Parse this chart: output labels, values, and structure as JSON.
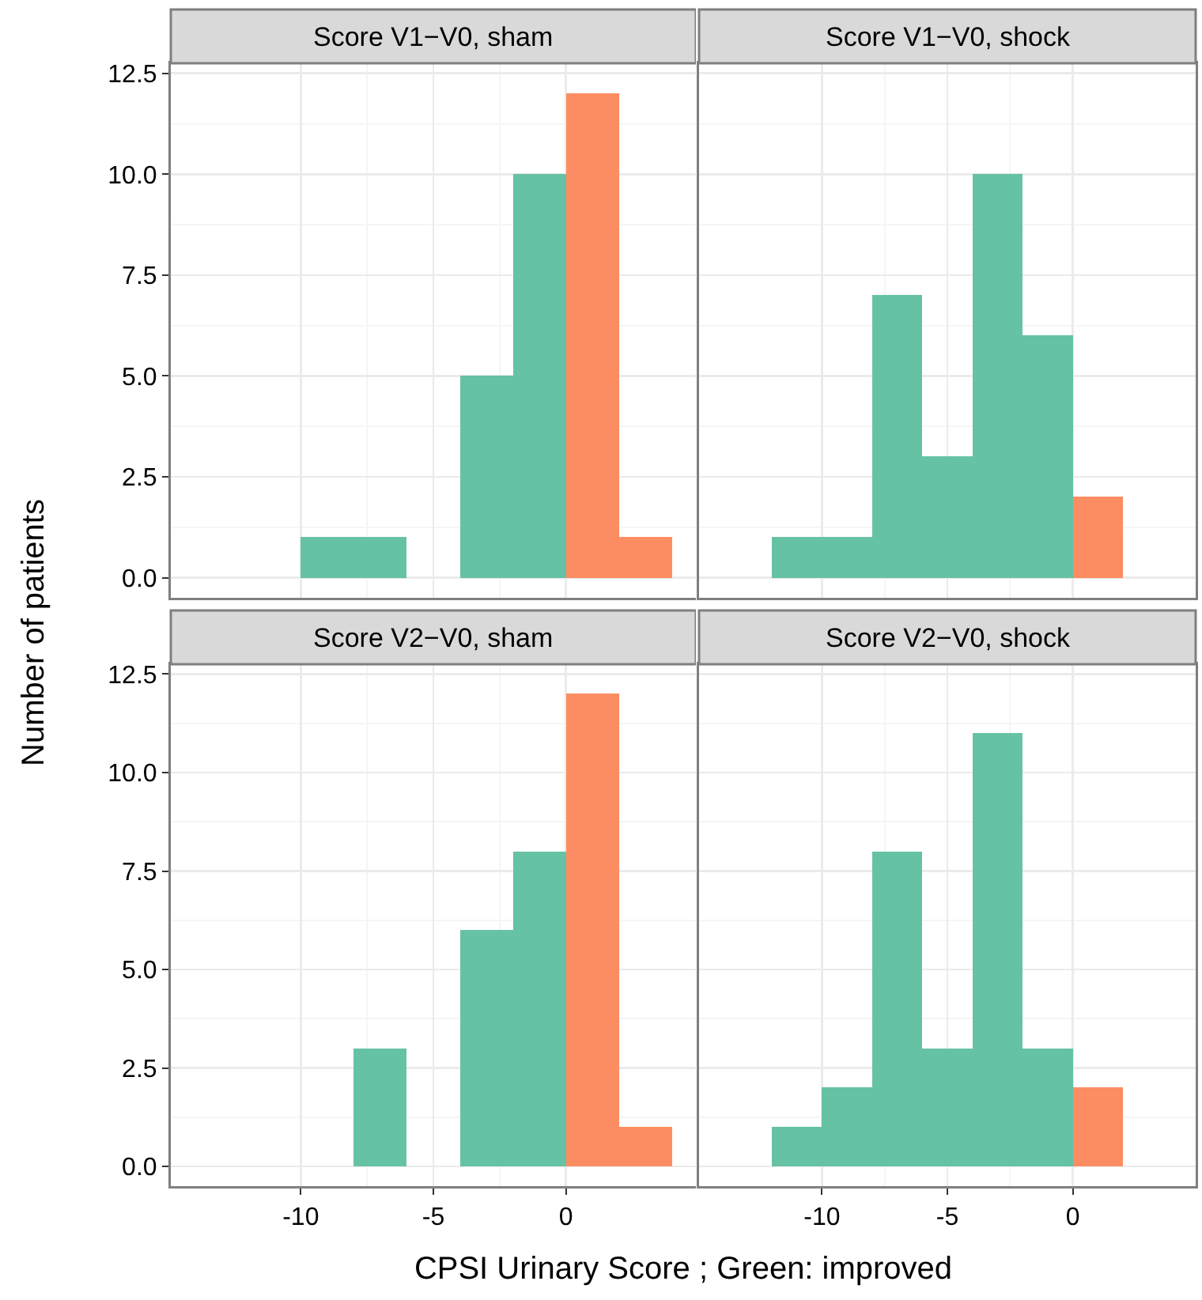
{
  "chart_data": [
    {
      "type": "histogram",
      "title": "Score V1−V0, sham",
      "ylabel": "Number of patients",
      "bins": [
        -14,
        -12,
        -10,
        -8,
        -6,
        -4,
        -2,
        0,
        2,
        4
      ],
      "values": [
        0,
        0,
        1,
        1,
        0,
        5,
        10,
        12,
        1
      ],
      "colors": [
        "#fc8d62",
        "#fc8d62",
        "#66c2a5",
        "#66c2a5",
        "#fc8d62",
        "#66c2a5",
        "#66c2a5",
        "#fc8d62",
        "#fc8d62"
      ],
      "xlim": [
        -14.9,
        4.9
      ],
      "ylim": [
        -0.5,
        12.75
      ],
      "xticks": [
        -10,
        -5,
        0
      ],
      "yticks": [
        {
          "value": 0,
          "label": "0.0"
        },
        {
          "value": 2.5,
          "label": "2.5"
        },
        {
          "value": 5,
          "label": "5.0"
        },
        {
          "value": 7.5,
          "label": "7.5"
        },
        {
          "value": 10,
          "label": "10.0"
        },
        {
          "value": 12.5,
          "label": "12.5"
        }
      ],
      "grid": true,
      "tick_labels": "y"
    },
    {
      "type": "histogram",
      "title": "Score V1−V0, shock",
      "bins": [
        -14,
        -12,
        -10,
        -8,
        -6,
        -4,
        -2,
        0,
        2,
        4
      ],
      "values": [
        0,
        1,
        1,
        7,
        3,
        10,
        6,
        2,
        0
      ],
      "colors": [
        "#fc8d62",
        "#66c2a5",
        "#66c2a5",
        "#66c2a5",
        "#66c2a5",
        "#66c2a5",
        "#66c2a5",
        "#fc8d62",
        "#fc8d62"
      ],
      "xlim": [
        -14.9,
        4.9
      ],
      "ylim": [
        -0.5,
        12.75
      ],
      "xticks": [
        -10,
        -5,
        0
      ],
      "yticks": [
        0,
        2.5,
        5,
        7.5,
        10,
        12.5
      ],
      "grid": true,
      "tick_labels": false
    },
    {
      "type": "histogram",
      "title": "Score V2−V0, sham",
      "xlabel": "CPSI Urinary Score ; Green: improved",
      "bins": [
        -14,
        -12,
        -10,
        -8,
        -6,
        -4,
        -2,
        0,
        2,
        4
      ],
      "values": [
        0,
        0,
        0,
        3,
        0,
        6,
        8,
        12,
        1
      ],
      "colors": [
        "#fc8d62",
        "#fc8d62",
        "#fc8d62",
        "#66c2a5",
        "#fc8d62",
        "#66c2a5",
        "#66c2a5",
        "#fc8d62",
        "#fc8d62"
      ],
      "xlim": [
        -14.9,
        4.9
      ],
      "ylim": [
        -0.5,
        12.75
      ],
      "xticks": [
        -10,
        -5,
        0
      ],
      "yticks": [
        {
          "value": 0,
          "label": "0.0"
        },
        {
          "value": 2.5,
          "label": "2.5"
        },
        {
          "value": 5,
          "label": "5.0"
        },
        {
          "value": 7.5,
          "label": "7.5"
        },
        {
          "value": 10,
          "label": "10.0"
        },
        {
          "value": 12.5,
          "label": "12.5"
        }
      ],
      "grid": true
    },
    {
      "type": "histogram",
      "title": "Score V2−V0, shock",
      "bins": [
        -14,
        -12,
        -10,
        -8,
        -6,
        -4,
        -2,
        0,
        2,
        4
      ],
      "values": [
        0,
        1,
        2,
        8,
        3,
        11,
        3,
        2,
        0
      ],
      "colors": [
        "#fc8d62",
        "#66c2a5",
        "#66c2a5",
        "#66c2a5",
        "#66c2a5",
        "#66c2a5",
        "#66c2a5",
        "#fc8d62",
        "#fc8d62"
      ],
      "xlim": [
        -14.9,
        4.9
      ],
      "ylim": [
        -0.5,
        12.75
      ],
      "xticks": [
        -10,
        -5,
        0
      ],
      "yticks": [
        0,
        2.5,
        5,
        7.5,
        10,
        12.5
      ],
      "grid": true,
      "tick_labels": "x"
    }
  ]
}
